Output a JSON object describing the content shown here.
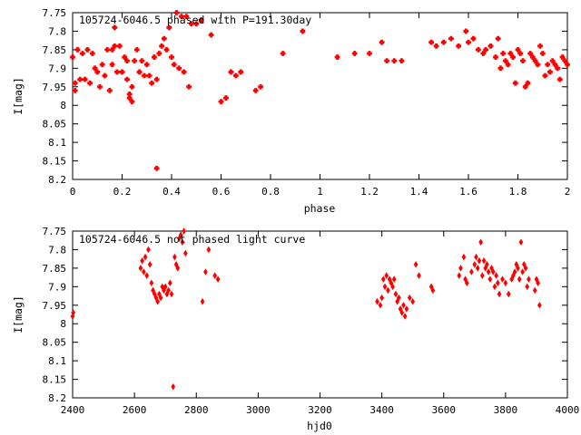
{
  "chart_data": [
    {
      "type": "scatter",
      "title": "105724-6046.5 phased with P=191.30day",
      "xlabel": "phase",
      "ylabel": "I[mag]",
      "xlim": [
        0,
        2
      ],
      "ylim": [
        8.2,
        7.75
      ],
      "y_inverted": true,
      "x_ticks": [
        "0",
        "0.2",
        "0.4",
        "0.6",
        "0.8",
        "1",
        "1.2",
        "1.4",
        "1.6",
        "1.8",
        "2"
      ],
      "y_ticks": [
        "7.75",
        "7.8",
        "7.85",
        "7.9",
        "7.95",
        "8",
        "8.05",
        "8.1",
        "8.15",
        "8.2"
      ],
      "marker": "plus-box",
      "color": "#ff0000",
      "grid": false,
      "points": [
        [
          0.0,
          7.87
        ],
        [
          0.01,
          7.94
        ],
        [
          0.01,
          7.96
        ],
        [
          0.02,
          7.85
        ],
        [
          0.03,
          7.93
        ],
        [
          0.04,
          7.86
        ],
        [
          0.05,
          7.93
        ],
        [
          0.06,
          7.85
        ],
        [
          0.07,
          7.94
        ],
        [
          0.08,
          7.86
        ],
        [
          0.09,
          7.9
        ],
        [
          0.1,
          7.91
        ],
        [
          0.11,
          7.95
        ],
        [
          0.12,
          7.89
        ],
        [
          0.13,
          7.92
        ],
        [
          0.14,
          7.85
        ],
        [
          0.15,
          7.96
        ],
        [
          0.16,
          7.89
        ],
        [
          0.16,
          7.85
        ],
        [
          0.17,
          7.84
        ],
        [
          0.17,
          7.79
        ],
        [
          0.18,
          7.91
        ],
        [
          0.19,
          7.84
        ],
        [
          0.2,
          7.91
        ],
        [
          0.21,
          7.87
        ],
        [
          0.22,
          7.88
        ],
        [
          0.22,
          7.93
        ],
        [
          0.23,
          7.98
        ],
        [
          0.23,
          7.97
        ],
        [
          0.24,
          7.99
        ],
        [
          0.24,
          7.95
        ],
        [
          0.25,
          7.88
        ],
        [
          0.26,
          7.85
        ],
        [
          0.27,
          7.91
        ],
        [
          0.28,
          7.88
        ],
        [
          0.29,
          7.92
        ],
        [
          0.3,
          7.89
        ],
        [
          0.31,
          7.92
        ],
        [
          0.32,
          7.94
        ],
        [
          0.33,
          7.87
        ],
        [
          0.34,
          7.93
        ],
        [
          0.34,
          8.17
        ],
        [
          0.35,
          7.86
        ],
        [
          0.36,
          7.84
        ],
        [
          0.37,
          7.82
        ],
        [
          0.38,
          7.85
        ],
        [
          0.39,
          7.79
        ],
        [
          0.4,
          7.87
        ],
        [
          0.41,
          7.89
        ],
        [
          0.42,
          7.75
        ],
        [
          0.43,
          7.9
        ],
        [
          0.44,
          7.76
        ],
        [
          0.45,
          7.91
        ],
        [
          0.46,
          7.76
        ],
        [
          0.47,
          7.95
        ],
        [
          0.48,
          7.78
        ],
        [
          0.5,
          7.78
        ],
        [
          0.52,
          7.77
        ],
        [
          0.56,
          7.81
        ],
        [
          0.6,
          7.99
        ],
        [
          0.62,
          7.98
        ],
        [
          0.64,
          7.91
        ],
        [
          0.66,
          7.92
        ],
        [
          0.68,
          7.91
        ],
        [
          0.74,
          7.96
        ],
        [
          0.76,
          7.95
        ],
        [
          0.85,
          7.86
        ],
        [
          0.93,
          7.8
        ],
        [
          1.07,
          7.87
        ],
        [
          1.14,
          7.86
        ],
        [
          1.2,
          7.86
        ],
        [
          1.25,
          7.83
        ],
        [
          1.27,
          7.88
        ],
        [
          1.3,
          7.88
        ],
        [
          1.33,
          7.88
        ],
        [
          1.45,
          7.83
        ],
        [
          1.47,
          7.84
        ],
        [
          1.5,
          7.83
        ],
        [
          1.53,
          7.82
        ],
        [
          1.56,
          7.84
        ],
        [
          1.59,
          7.8
        ],
        [
          1.6,
          7.83
        ],
        [
          1.62,
          7.82
        ],
        [
          1.64,
          7.85
        ],
        [
          1.66,
          7.86
        ],
        [
          1.67,
          7.85
        ],
        [
          1.69,
          7.84
        ],
        [
          1.71,
          7.87
        ],
        [
          1.72,
          7.82
        ],
        [
          1.73,
          7.9
        ],
        [
          1.74,
          7.86
        ],
        [
          1.75,
          7.88
        ],
        [
          1.76,
          7.89
        ],
        [
          1.77,
          7.86
        ],
        [
          1.78,
          7.87
        ],
        [
          1.79,
          7.94
        ],
        [
          1.8,
          7.85
        ],
        [
          1.81,
          7.86
        ],
        [
          1.82,
          7.88
        ],
        [
          1.83,
          7.95
        ],
        [
          1.84,
          7.94
        ],
        [
          1.85,
          7.86
        ],
        [
          1.86,
          7.87
        ],
        [
          1.87,
          7.88
        ],
        [
          1.88,
          7.89
        ],
        [
          1.89,
          7.84
        ],
        [
          1.9,
          7.86
        ],
        [
          1.91,
          7.92
        ],
        [
          1.92,
          7.89
        ],
        [
          1.93,
          7.91
        ],
        [
          1.94,
          7.88
        ],
        [
          1.95,
          7.89
        ],
        [
          1.96,
          7.9
        ],
        [
          1.97,
          7.93
        ],
        [
          1.98,
          7.87
        ],
        [
          1.99,
          7.88
        ],
        [
          2.0,
          7.89
        ]
      ]
    },
    {
      "type": "scatter",
      "title": "105724-6046.5 not phased light curve",
      "xlabel": "hjd0",
      "ylabel": "I[mag]",
      "xlim": [
        2400,
        4000
      ],
      "ylim": [
        8.2,
        7.75
      ],
      "y_inverted": true,
      "x_ticks": [
        "2400",
        "2600",
        "2800",
        "3000",
        "3200",
        "3400",
        "3600",
        "3800",
        "4000"
      ],
      "y_ticks": [
        "7.75",
        "7.8",
        "7.85",
        "7.9",
        "7.95",
        "8",
        "8.05",
        "8.1",
        "8.15",
        "8.2"
      ],
      "marker": "diamond",
      "color": "#ff0000",
      "grid": false,
      "points": [
        [
          2400,
          7.98
        ],
        [
          2402,
          7.97
        ],
        [
          2620,
          7.85
        ],
        [
          2625,
          7.83
        ],
        [
          2630,
          7.86
        ],
        [
          2635,
          7.82
        ],
        [
          2640,
          7.87
        ],
        [
          2645,
          7.8
        ],
        [
          2650,
          7.84
        ],
        [
          2655,
          7.89
        ],
        [
          2660,
          7.91
        ],
        [
          2665,
          7.92
        ],
        [
          2670,
          7.93
        ],
        [
          2675,
          7.94
        ],
        [
          2680,
          7.92
        ],
        [
          2685,
          7.93
        ],
        [
          2690,
          7.9
        ],
        [
          2695,
          7.91
        ],
        [
          2700,
          7.9
        ],
        [
          2705,
          7.92
        ],
        [
          2710,
          7.91
        ],
        [
          2715,
          7.89
        ],
        [
          2720,
          7.92
        ],
        [
          2725,
          8.17
        ],
        [
          2730,
          7.82
        ],
        [
          2735,
          7.84
        ],
        [
          2740,
          7.85
        ],
        [
          2745,
          7.77
        ],
        [
          2750,
          7.76
        ],
        [
          2755,
          7.78
        ],
        [
          2760,
          7.75
        ],
        [
          2765,
          7.81
        ],
        [
          2820,
          7.94
        ],
        [
          2830,
          7.86
        ],
        [
          2840,
          7.8
        ],
        [
          2860,
          7.87
        ],
        [
          2870,
          7.88
        ],
        [
          3385,
          7.94
        ],
        [
          3395,
          7.95
        ],
        [
          3400,
          7.93
        ],
        [
          3405,
          7.88
        ],
        [
          3410,
          7.9
        ],
        [
          3415,
          7.87
        ],
        [
          3420,
          7.91
        ],
        [
          3425,
          7.88
        ],
        [
          3430,
          7.89
        ],
        [
          3435,
          7.9
        ],
        [
          3440,
          7.88
        ],
        [
          3445,
          7.92
        ],
        [
          3450,
          7.94
        ],
        [
          3455,
          7.93
        ],
        [
          3460,
          7.96
        ],
        [
          3465,
          7.97
        ],
        [
          3470,
          7.95
        ],
        [
          3475,
          7.98
        ],
        [
          3480,
          7.96
        ],
        [
          3490,
          7.93
        ],
        [
          3500,
          7.94
        ],
        [
          3510,
          7.84
        ],
        [
          3520,
          7.87
        ],
        [
          3560,
          7.9
        ],
        [
          3565,
          7.91
        ],
        [
          3650,
          7.87
        ],
        [
          3655,
          7.85
        ],
        [
          3665,
          7.82
        ],
        [
          3670,
          7.88
        ],
        [
          3675,
          7.89
        ],
        [
          3690,
          7.86
        ],
        [
          3700,
          7.84
        ],
        [
          3705,
          7.82
        ],
        [
          3710,
          7.85
        ],
        [
          3715,
          7.83
        ],
        [
          3720,
          7.78
        ],
        [
          3725,
          7.87
        ],
        [
          3730,
          7.83
        ],
        [
          3735,
          7.85
        ],
        [
          3740,
          7.84
        ],
        [
          3745,
          7.86
        ],
        [
          3750,
          7.88
        ],
        [
          3755,
          7.85
        ],
        [
          3760,
          7.86
        ],
        [
          3765,
          7.9
        ],
        [
          3770,
          7.87
        ],
        [
          3775,
          7.89
        ],
        [
          3780,
          7.92
        ],
        [
          3790,
          7.88
        ],
        [
          3800,
          7.89
        ],
        [
          3810,
          7.92
        ],
        [
          3820,
          7.88
        ],
        [
          3825,
          7.87
        ],
        [
          3830,
          7.86
        ],
        [
          3835,
          7.84
        ],
        [
          3840,
          7.85
        ],
        [
          3845,
          7.88
        ],
        [
          3850,
          7.78
        ],
        [
          3855,
          7.86
        ],
        [
          3860,
          7.84
        ],
        [
          3865,
          7.85
        ],
        [
          3870,
          7.9
        ],
        [
          3875,
          7.88
        ],
        [
          3895,
          7.91
        ],
        [
          3900,
          7.88
        ],
        [
          3905,
          7.89
        ],
        [
          3910,
          7.95
        ]
      ]
    }
  ]
}
